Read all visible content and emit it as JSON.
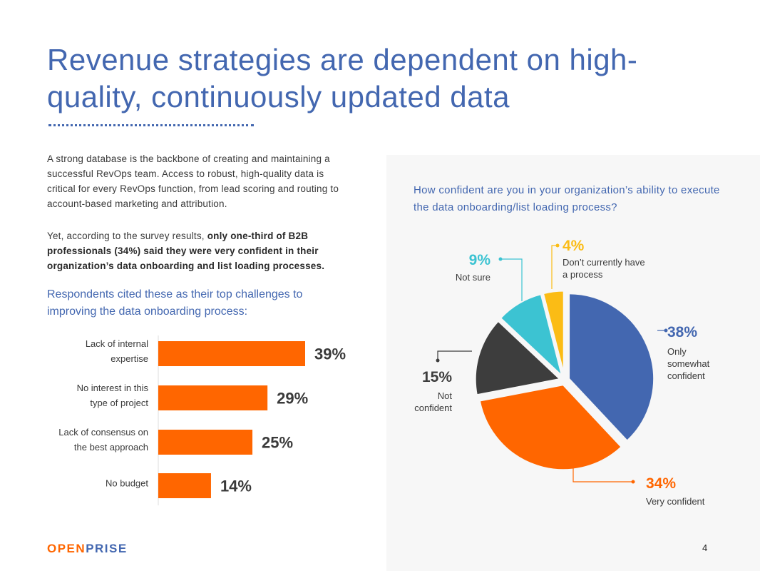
{
  "title": "Revenue strategies are dependent on high-quality, continuously updated data",
  "intro": "A strong database is the backbone of creating and maintaining a successful RevOps team. Access to robust, high-quality data is critical for every RevOps function, from lead scoring and routing to account-based marketing and attribution.",
  "finding": {
    "prefix": "Yet, according to the survey results, ",
    "bold": "only one-third of B2B professionals (34%) said they were very confident in their organization’s data onboarding and list loading processes."
  },
  "challenges_heading": "Respondents cited these as their top challenges to improving the data onboarding process:",
  "chart_data": [
    {
      "type": "bar",
      "orientation": "horizontal",
      "categories": [
        [
          "Lack of internal",
          "expertise"
        ],
        [
          "No interest in this",
          "type of project"
        ],
        [
          "Lack of consensus on",
          "the best approach"
        ],
        [
          "No budget"
        ]
      ],
      "values": [
        39,
        29,
        25,
        14
      ],
      "value_labels": [
        "39%",
        "29%",
        "25%",
        "14%"
      ],
      "color": "#ff6600",
      "grid": false
    },
    {
      "type": "pie",
      "title": "How confident are you in your organization’s ability to execute the data onboarding/list loading process?",
      "slices": [
        {
          "label": "Only somewhat confident",
          "label_lines": [
            "Only",
            "somewhat",
            "confident"
          ],
          "value": 38,
          "value_label": "38%",
          "color": "#4367b0"
        },
        {
          "label": "Very confident",
          "label_lines": [
            "Very confident"
          ],
          "value": 34,
          "value_label": "34%",
          "color": "#ff6600"
        },
        {
          "label": "Not confident",
          "label_lines": [
            "Not",
            "confident"
          ],
          "value": 15,
          "value_label": "15%",
          "color": "#3d3d3d"
        },
        {
          "label": "Not sure",
          "label_lines": [
            "Not sure"
          ],
          "value": 9,
          "value_label": "9%",
          "color": "#3cc3d2"
        },
        {
          "label": "Don’t currently have a process",
          "label_lines": [
            "Don’t currently have",
            "a process"
          ],
          "value": 4,
          "value_label": "4%",
          "color": "#fbbc15"
        }
      ],
      "start": "12 o'clock",
      "direction": "clockwise",
      "exploded": true
    }
  ],
  "footer": {
    "logo_part1": "OPEN",
    "logo_part2": "PRISE",
    "page_number": "4"
  }
}
